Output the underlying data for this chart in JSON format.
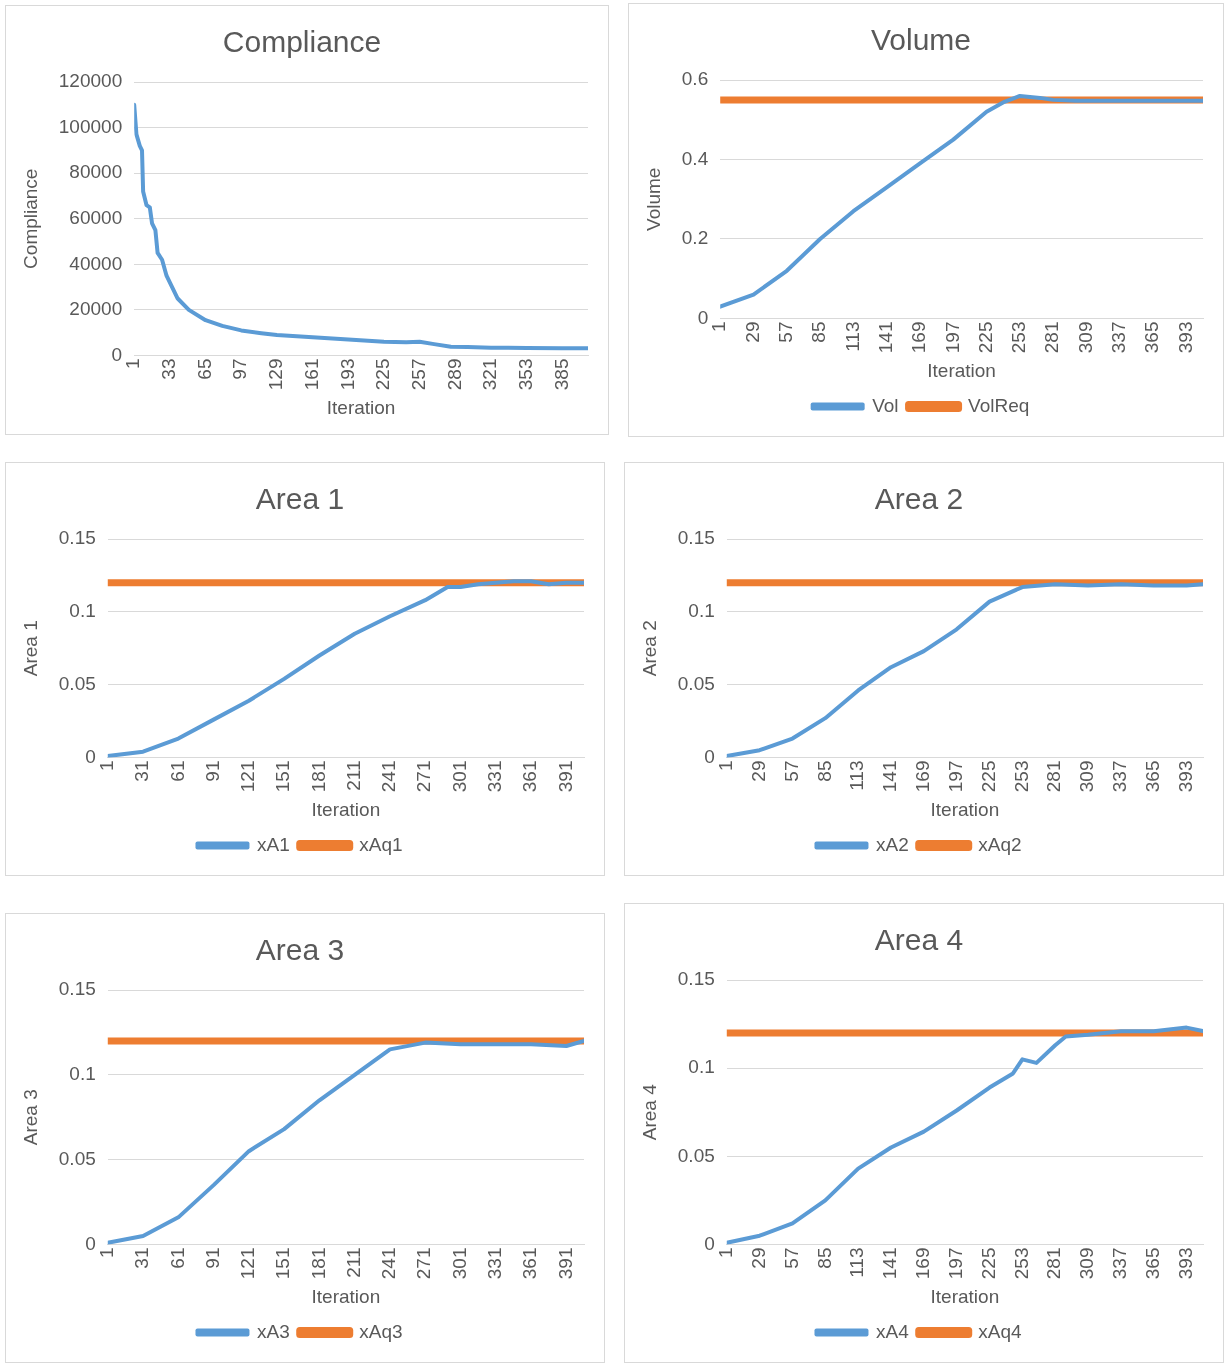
{
  "chart_data": [
    {
      "type": "line",
      "title": "Compliance",
      "xlabel": "Iteration",
      "ylabel": "Compliance",
      "xlim": [
        1,
        408
      ],
      "xticks": [
        1,
        33,
        65,
        97,
        129,
        161,
        193,
        225,
        257,
        289,
        321,
        353,
        385
      ],
      "ylim": [
        0,
        120000
      ],
      "yticks": [
        0,
        20000,
        40000,
        60000,
        80000,
        100000,
        120000
      ],
      "grid": "y",
      "legend": false,
      "series": [
        {
          "color": "#5b9bd5",
          "x": [
            1,
            3,
            6,
            8,
            9,
            12,
            15,
            17,
            20,
            22,
            26,
            30,
            35,
            40,
            50,
            65,
            80,
            97,
            115,
            129,
            161,
            193,
            225,
            245,
            257,
            270,
            285,
            300,
            321,
            353,
            385,
            408
          ],
          "values": [
            110000,
            97000,
            92000,
            90000,
            72000,
            66000,
            65000,
            58000,
            55000,
            45000,
            42000,
            35000,
            30000,
            25000,
            20000,
            15500,
            13000,
            11000,
            9800,
            9000,
            8000,
            7000,
            6000,
            5800,
            6000,
            5000,
            3800,
            3700,
            3400,
            3300,
            3200,
            3200
          ]
        }
      ]
    },
    {
      "type": "line",
      "title": "Volume",
      "xlabel": "Iteration",
      "ylabel": "Volume",
      "xlim": [
        1,
        407
      ],
      "xticks": [
        1,
        29,
        57,
        85,
        113,
        141,
        169,
        197,
        225,
        253,
        281,
        309,
        337,
        365,
        393
      ],
      "ylim": [
        0,
        0.6
      ],
      "yticks": [
        0,
        0.2,
        0.4,
        0.6
      ],
      "grid": "y",
      "legend": "bottom",
      "series": [
        {
          "name": "Vol",
          "color": "#5b9bd5",
          "x": [
            1,
            29,
            57,
            85,
            113,
            141,
            169,
            197,
            225,
            240,
            253,
            270,
            281,
            300,
            340,
            380,
            407
          ],
          "values": [
            0.03,
            0.06,
            0.12,
            0.2,
            0.27,
            0.33,
            0.39,
            0.45,
            0.52,
            0.545,
            0.56,
            0.555,
            0.55,
            0.548,
            0.548,
            0.548,
            0.548
          ]
        },
        {
          "name": "VolReq",
          "color": "#ed7d31",
          "x": [
            1,
            407
          ],
          "values": [
            0.55,
            0.55
          ]
        }
      ]
    },
    {
      "type": "line",
      "title": "Area 1",
      "xlabel": "Iteration",
      "ylabel": "Area 1",
      "xlim": [
        1,
        406
      ],
      "xticks": [
        1,
        31,
        61,
        91,
        121,
        151,
        181,
        211,
        241,
        271,
        301,
        331,
        361,
        391
      ],
      "ylim": [
        0,
        0.15
      ],
      "yticks": [
        0,
        0.05,
        0.1,
        0.15
      ],
      "grid": "y",
      "legend": "bottom",
      "series": [
        {
          "name": "xA1",
          "color": "#5b9bd5",
          "x": [
            1,
            31,
            61,
            91,
            121,
            151,
            181,
            211,
            241,
            271,
            290,
            301,
            316,
            331,
            346,
            361,
            376,
            391,
            406
          ],
          "values": [
            0.001,
            0.004,
            0.013,
            0.026,
            0.039,
            0.054,
            0.07,
            0.085,
            0.097,
            0.108,
            0.117,
            0.117,
            0.119,
            0.12,
            0.121,
            0.121,
            0.119,
            0.12,
            0.12
          ]
        },
        {
          "name": "xAq1",
          "color": "#ed7d31",
          "x": [
            1,
            406
          ],
          "values": [
            0.12,
            0.12
          ]
        }
      ]
    },
    {
      "type": "line",
      "title": "Area 2",
      "xlabel": "Iteration",
      "ylabel": "Area 2",
      "xlim": [
        1,
        407
      ],
      "xticks": [
        1,
        29,
        57,
        85,
        113,
        141,
        169,
        197,
        225,
        253,
        281,
        309,
        337,
        365,
        393
      ],
      "ylim": [
        0,
        0.15
      ],
      "yticks": [
        0,
        0.05,
        0.1,
        0.15
      ],
      "grid": "y",
      "legend": "bottom",
      "series": [
        {
          "name": "xA2",
          "color": "#5b9bd5",
          "x": [
            1,
            29,
            57,
            85,
            113,
            141,
            169,
            197,
            225,
            253,
            281,
            309,
            337,
            365,
            393,
            407
          ],
          "values": [
            0.001,
            0.005,
            0.013,
            0.027,
            0.046,
            0.062,
            0.073,
            0.088,
            0.107,
            0.117,
            0.119,
            0.118,
            0.119,
            0.118,
            0.118,
            0.119
          ]
        },
        {
          "name": "xAq2",
          "color": "#ed7d31",
          "x": [
            1,
            407
          ],
          "values": [
            0.12,
            0.12
          ]
        }
      ]
    },
    {
      "type": "line",
      "title": "Area 3",
      "xlabel": "Iteration",
      "ylabel": "Area 3",
      "xlim": [
        1,
        406
      ],
      "xticks": [
        1,
        31,
        61,
        91,
        121,
        151,
        181,
        211,
        241,
        271,
        301,
        331,
        361,
        391
      ],
      "ylim": [
        0,
        0.15
      ],
      "yticks": [
        0,
        0.05,
        0.1,
        0.15
      ],
      "grid": "y",
      "legend": "bottom",
      "series": [
        {
          "name": "xA3",
          "color": "#5b9bd5",
          "x": [
            1,
            31,
            61,
            91,
            121,
            151,
            181,
            211,
            241,
            271,
            301,
            331,
            361,
            391,
            406
          ],
          "values": [
            0.001,
            0.005,
            0.016,
            0.035,
            0.055,
            0.068,
            0.085,
            0.1,
            0.115,
            0.119,
            0.118,
            0.118,
            0.118,
            0.117,
            0.12
          ]
        },
        {
          "name": "xAq3",
          "color": "#ed7d31",
          "x": [
            1,
            406
          ],
          "values": [
            0.12,
            0.12
          ]
        }
      ]
    },
    {
      "type": "line",
      "title": "Area 4",
      "xlabel": "Iteration",
      "ylabel": "Area 4",
      "xlim": [
        1,
        407
      ],
      "xticks": [
        1,
        29,
        57,
        85,
        113,
        141,
        169,
        197,
        225,
        253,
        281,
        309,
        337,
        365,
        393
      ],
      "ylim": [
        0,
        0.15
      ],
      "yticks": [
        0,
        0.05,
        0.1,
        0.15
      ],
      "grid": "y",
      "legend": "bottom",
      "series": [
        {
          "name": "xA4",
          "color": "#5b9bd5",
          "x": [
            1,
            29,
            57,
            85,
            113,
            141,
            169,
            197,
            225,
            245,
            253,
            265,
            281,
            290,
            309,
            337,
            365,
            393,
            407
          ],
          "values": [
            0.001,
            0.005,
            0.012,
            0.025,
            0.043,
            0.055,
            0.064,
            0.076,
            0.089,
            0.097,
            0.105,
            0.103,
            0.113,
            0.118,
            0.119,
            0.121,
            0.121,
            0.123,
            0.121
          ]
        },
        {
          "name": "xAq4",
          "color": "#ed7d31",
          "x": [
            1,
            407
          ],
          "values": [
            0.12,
            0.12
          ]
        }
      ]
    }
  ]
}
